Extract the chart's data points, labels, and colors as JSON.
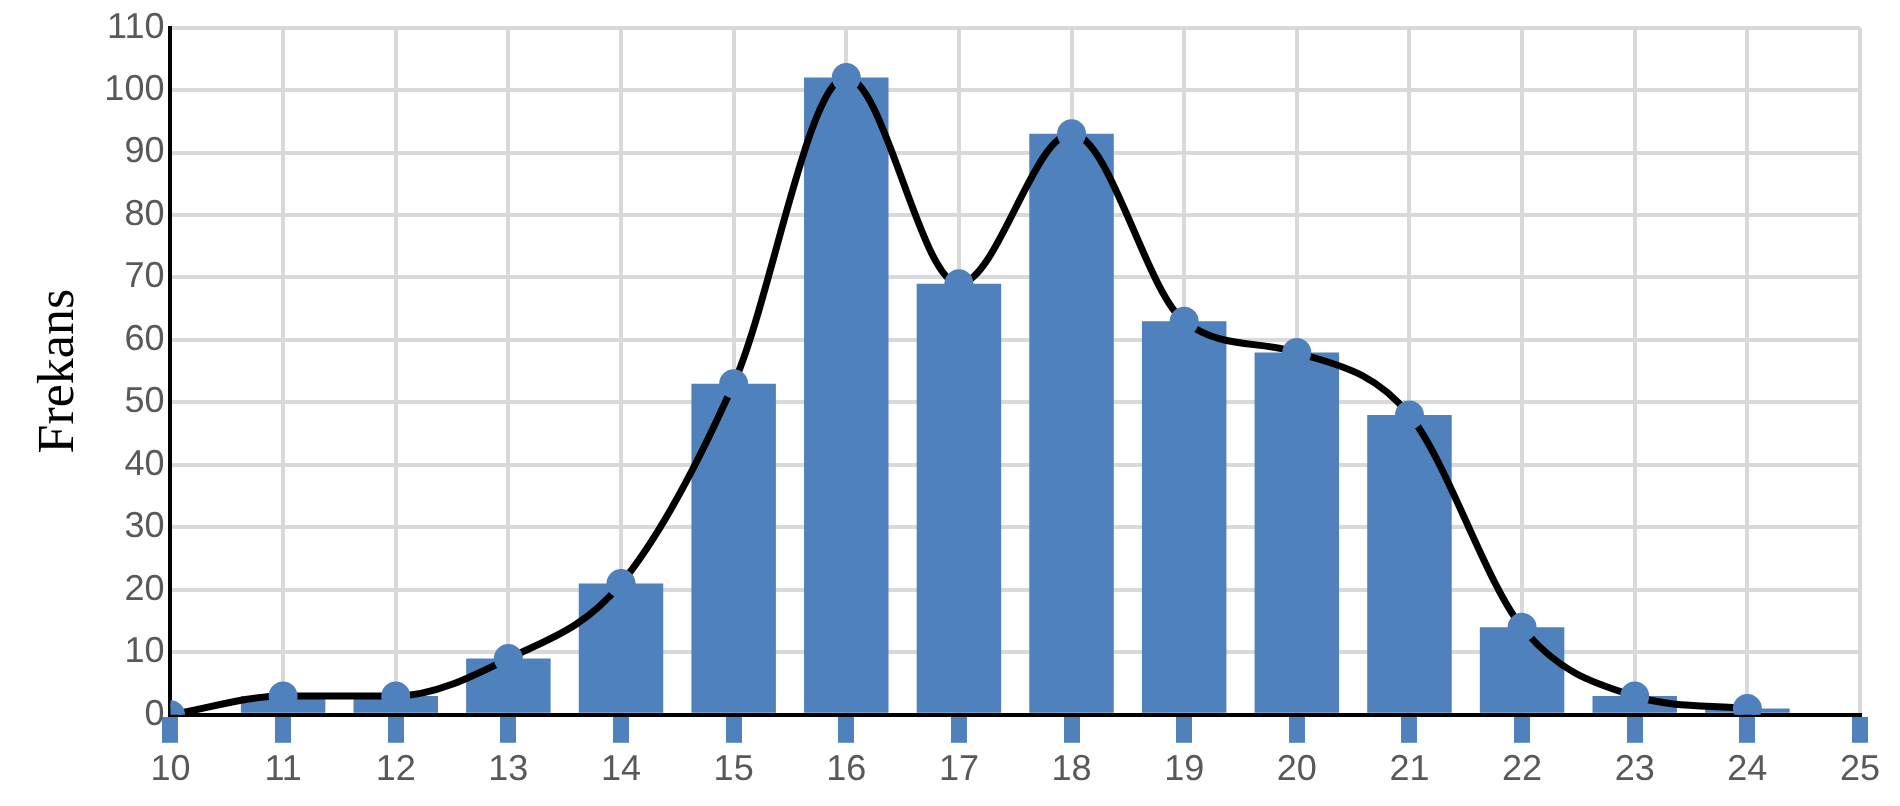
{
  "chart_data": {
    "type": "bar",
    "ylabel": "Frekans",
    "x": [
      10,
      11,
      12,
      13,
      14,
      15,
      16,
      17,
      18,
      19,
      20,
      21,
      22,
      23,
      24
    ],
    "series": [
      {
        "color": "#4f81bd",
        "values": [
          0,
          3,
          3,
          9,
          21,
          53,
          102,
          69,
          93,
          63,
          58,
          48,
          14,
          3,
          1
        ]
      },
      {
        "type": "line",
        "color": "#000000",
        "marker": "circle",
        "values": [
          0,
          3,
          3,
          9,
          21,
          53,
          102,
          69,
          93,
          63,
          58,
          48,
          14,
          3,
          1
        ]
      }
    ],
    "xlim": [
      10,
      25
    ],
    "xticks": [
      10,
      11,
      12,
      13,
      14,
      15,
      16,
      17,
      18,
      19,
      20,
      21,
      22,
      23,
      24,
      25
    ],
    "ylim": [
      0,
      110
    ],
    "yticks": [
      0,
      10,
      20,
      30,
      40,
      50,
      60,
      70,
      80,
      90,
      100,
      110
    ],
    "grid": true,
    "legend": false
  }
}
